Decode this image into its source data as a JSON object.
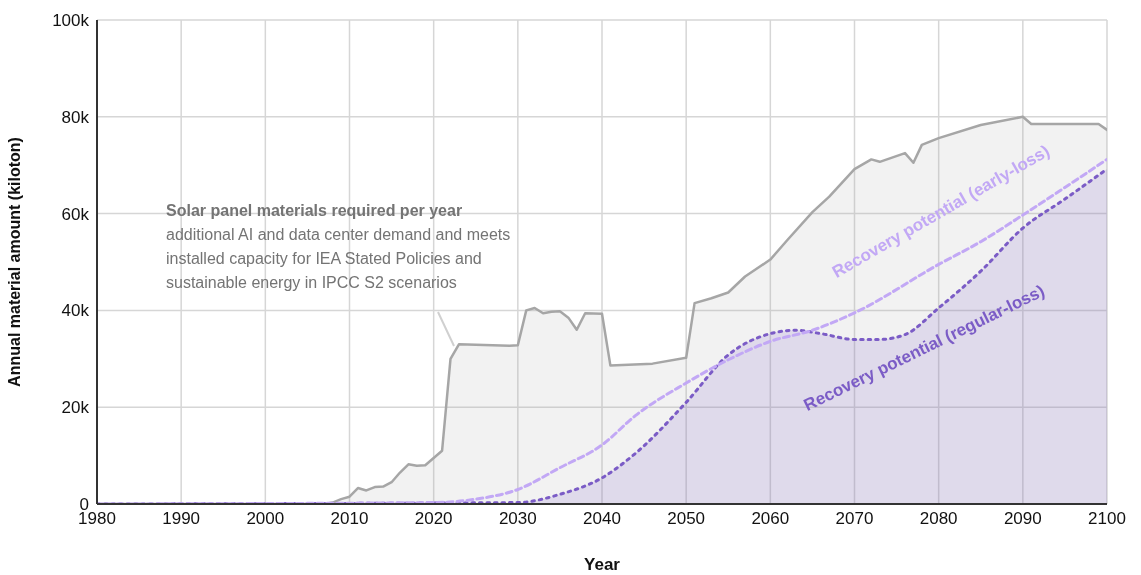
{
  "chart_data": {
    "type": "area",
    "xlabel": "Year",
    "ylabel": "Annual material amount (kiloton)",
    "xlim": [
      1980,
      2100
    ],
    "xticks": [
      1980,
      1990,
      2000,
      2010,
      2020,
      2030,
      2040,
      2050,
      2060,
      2070,
      2080,
      2090,
      2100
    ],
    "ylim": [
      0,
      100000
    ],
    "yticks": [
      0,
      {
        "value": 20000,
        "label": "20k"
      },
      {
        "value": 40000,
        "label": "40k"
      },
      {
        "value": 60000,
        "label": "60k"
      },
      {
        "value": 80000,
        "label": "80k"
      },
      {
        "value": 100000,
        "label": "100k"
      }
    ],
    "grid": true,
    "legend": false,
    "marker": "none",
    "annotations": [
      "additional AI and data center demand and meets installed capacity for IEA Stated Policies and sustainable energy in IPCC S2 scenarios"
    ],
    "series": [
      {
        "name": "Solar panel materials required per year",
        "type": "area",
        "color": "#a6a6a6",
        "line_style": "solid",
        "x": [
          1980,
          2007,
          2008,
          2009,
          2010,
          2011,
          2012,
          2013,
          2014,
          2015,
          2016,
          2017,
          2018,
          2019,
          2020,
          2021,
          2022,
          2023,
          2029,
          2030,
          2031,
          2032,
          2033,
          2034,
          2035,
          2036,
          2037,
          2038,
          2040,
          2041,
          2046,
          2050,
          2051,
          2053,
          2055,
          2057,
          2060,
          2062,
          2065,
          2067,
          2070,
          2072,
          2073,
          2076,
          2077,
          2078,
          2080,
          2085,
          2090,
          2091,
          2099,
          2100
        ],
        "values": [
          0,
          0,
          300,
          1000,
          1500,
          3300,
          2800,
          3500,
          3600,
          4500,
          6500,
          8200,
          7900,
          8000,
          9500,
          11000,
          30000,
          33000,
          32700,
          32800,
          40000,
          40500,
          39400,
          39700,
          39800,
          38500,
          36000,
          39400,
          39300,
          28600,
          29000,
          30200,
          41500,
          42500,
          43700,
          47000,
          50500,
          54500,
          60300,
          63500,
          69200,
          71200,
          70700,
          72500,
          70500,
          74200,
          75600,
          78300,
          80000,
          78500,
          78500,
          77300
        ]
      },
      {
        "name": "Recovery potential (early-loss)",
        "type": "line",
        "color": "#c2a8f5",
        "line_style": "dashed",
        "x": [
          1980,
          2020,
          2025,
          2030,
          2035,
          2040,
          2044,
          2050,
          2055,
          2060,
          2065,
          2070,
          2080,
          2085,
          2090,
          2095,
          2100
        ],
        "values": [
          0,
          300,
          1000,
          3000,
          7500,
          12200,
          18300,
          25000,
          29800,
          33600,
          35900,
          39500,
          49500,
          54200,
          59700,
          65400,
          71200
        ]
      },
      {
        "name": "Recovery potential (regular-loss)",
        "color": "#7b5cc6",
        "line_style": "dotted",
        "x": [
          1980,
          2030,
          2035,
          2040,
          2044,
          2050,
          2055,
          2060,
          2063,
          2066,
          2070,
          2073,
          2076,
          2080,
          2085,
          2090,
          2095,
          2100
        ],
        "values": [
          0,
          300,
          2000,
          5400,
          10500,
          21000,
          30800,
          35200,
          35900,
          35200,
          34000,
          34000,
          35000,
          40500,
          48100,
          57000,
          63000,
          69200
        ]
      }
    ]
  }
}
